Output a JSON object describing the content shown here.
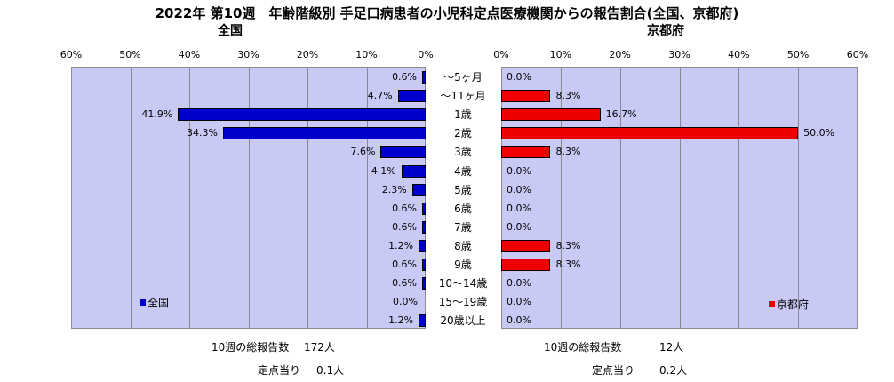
{
  "title": "2022年 第10週　年齢階級別 手足口病患者の小児科定点医療機関からの報告割合(全国、京都府)",
  "chart_data": {
    "type": "bar",
    "orientation": "horizontal-butterfly",
    "categories": [
      "～5ヶ月",
      "～11ヶ月",
      "1歳",
      "2歳",
      "3歳",
      "4歳",
      "5歳",
      "6歳",
      "7歳",
      "8歳",
      "9歳",
      "10～14歳",
      "15～19歳",
      "20歳以上"
    ],
    "x_ticks": [
      "0%",
      "10%",
      "20%",
      "30%",
      "40%",
      "50%",
      "60%"
    ],
    "xlim": [
      0,
      60
    ],
    "grid": true,
    "series": [
      {
        "name": "全国",
        "panel_title": "全国",
        "color": "#0000CC",
        "values": [
          0.6,
          4.7,
          41.9,
          34.3,
          7.6,
          4.1,
          2.3,
          0.6,
          0.6,
          1.2,
          0.6,
          0.6,
          0.0,
          1.2
        ],
        "labels": [
          "0.6%",
          "4.7%",
          "41.9%",
          "34.3%",
          "7.6%",
          "4.1%",
          "2.3%",
          "0.6%",
          "0.6%",
          "1.2%",
          "0.6%",
          "0.6%",
          "0.0%",
          "1.2%"
        ],
        "legend_position": "bottom-left"
      },
      {
        "name": "京都府",
        "panel_title": "京都府",
        "color": "#EE0000",
        "values": [
          0.0,
          8.3,
          16.7,
          50.0,
          8.3,
          0.0,
          0.0,
          0.0,
          0.0,
          8.3,
          8.3,
          0.0,
          0.0,
          0.0
        ],
        "labels": [
          "0.0%",
          "8.3%",
          "16.7%",
          "50.0%",
          "8.3%",
          "0.0%",
          "0.0%",
          "0.0%",
          "0.0%",
          "8.3%",
          "8.3%",
          "0.0%",
          "0.0%",
          "0.0%"
        ],
        "legend_position": "bottom-right"
      }
    ]
  },
  "footer": {
    "zenkoku": {
      "total_label": "10週の総報告数",
      "total_value": "172人",
      "per_label": "定点当り",
      "per_value": "0.1人"
    },
    "kyoto": {
      "total_label": "10週の総報告数",
      "total_value": "12人",
      "per_label": "定点当り",
      "per_value": "0.2人"
    }
  }
}
